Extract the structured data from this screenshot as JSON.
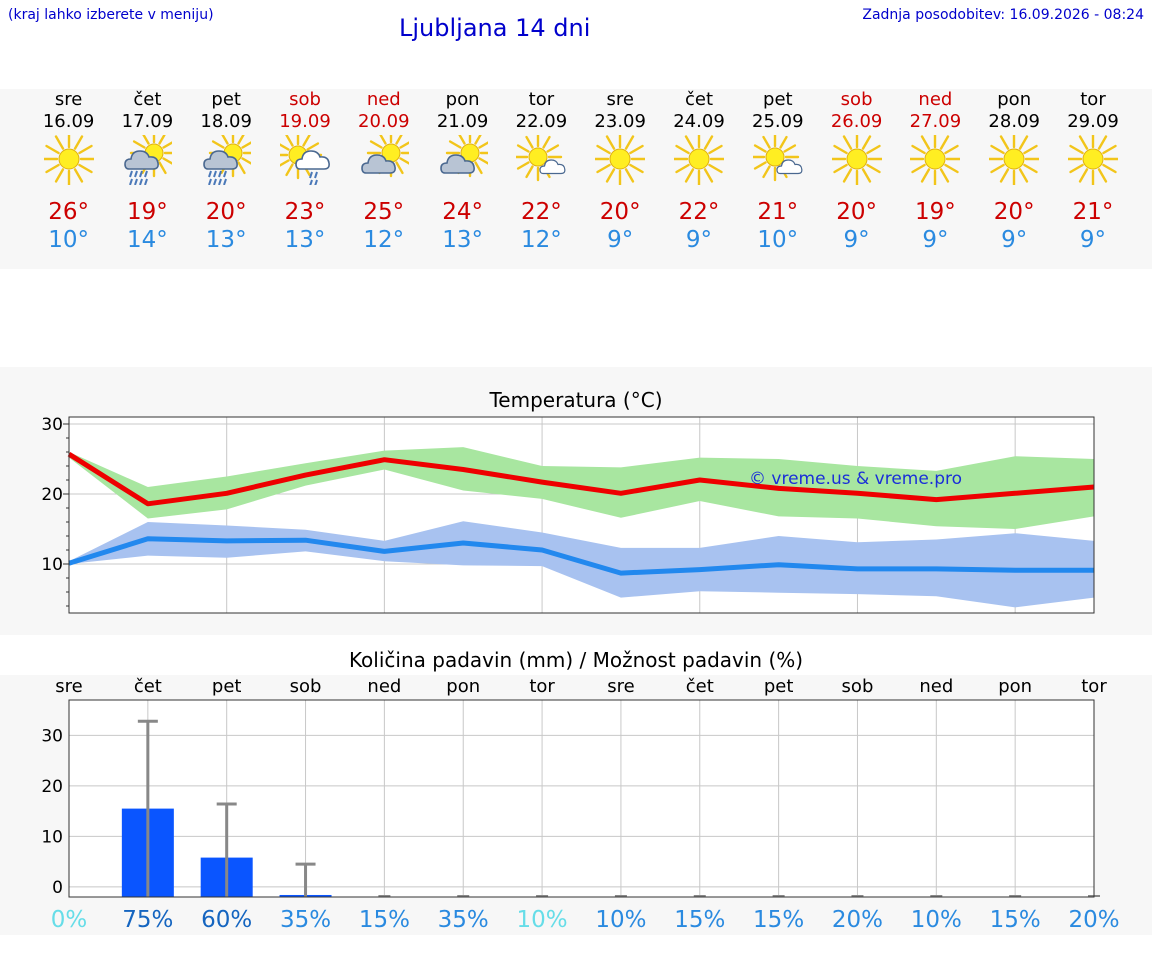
{
  "header": {
    "hint": "(kraj lahko izberete v meniju)",
    "title": "Ljubljana 14 dni",
    "updated": "Zadnja posodobitev: 16.09.2026 - 08:24"
  },
  "days": [
    {
      "day": "sre",
      "date": "16.09",
      "weekend": false,
      "icon": "sun-icon",
      "max": "26°",
      "min": "10°"
    },
    {
      "day": "čet",
      "date": "17.09",
      "weekend": false,
      "icon": "sun-cloud-rain-icon",
      "max": "19°",
      "min": "14°"
    },
    {
      "day": "pet",
      "date": "18.09",
      "weekend": false,
      "icon": "sun-cloud-rain-icon",
      "max": "20°",
      "min": "13°"
    },
    {
      "day": "sob",
      "date": "19.09",
      "weekend": true,
      "icon": "sun-cloud-light-rain-icon",
      "max": "23°",
      "min": "13°"
    },
    {
      "day": "ned",
      "date": "20.09",
      "weekend": true,
      "icon": "sun-cloud-icon",
      "max": "25°",
      "min": "12°"
    },
    {
      "day": "pon",
      "date": "21.09",
      "weekend": false,
      "icon": "sun-cloud-icon",
      "max": "24°",
      "min": "13°"
    },
    {
      "day": "tor",
      "date": "22.09",
      "weekend": false,
      "icon": "sun-small-cloud-icon",
      "max": "22°",
      "min": "12°"
    },
    {
      "day": "sre",
      "date": "23.09",
      "weekend": false,
      "icon": "sun-icon",
      "max": "20°",
      "min": "9°"
    },
    {
      "day": "čet",
      "date": "24.09",
      "weekend": false,
      "icon": "sun-icon",
      "max": "22°",
      "min": "9°"
    },
    {
      "day": "pet",
      "date": "25.09",
      "weekend": false,
      "icon": "sun-small-cloud-icon",
      "max": "21°",
      "min": "10°"
    },
    {
      "day": "sob",
      "date": "26.09",
      "weekend": true,
      "icon": "sun-icon",
      "max": "20°",
      "min": "9°"
    },
    {
      "day": "ned",
      "date": "27.09",
      "weekend": true,
      "icon": "sun-icon",
      "max": "19°",
      "min": "9°"
    },
    {
      "day": "pon",
      "date": "28.09",
      "weekend": false,
      "icon": "sun-icon",
      "max": "20°",
      "min": "9°"
    },
    {
      "day": "tor",
      "date": "29.09",
      "weekend": false,
      "icon": "sun-icon",
      "max": "21°",
      "min": "9°"
    }
  ],
  "colors": {
    "max_line": "#ee0000",
    "max_band": "#a8e6a0",
    "min_line": "#2288ee",
    "min_band": "#a8c2f0",
    "precip_bar": "#0a55ff",
    "error_bar": "#888888",
    "header_text": "#0000cc",
    "weekend_text": "#cc0000",
    "min_text": "#2a8ae0"
  },
  "chart_data": [
    {
      "type": "line",
      "title": "Temperatura (°C)",
      "watermark": "© vreme.us & vreme.pro",
      "x": [
        "16.09",
        "17.09",
        "18.09",
        "19.09",
        "20.09",
        "21.09",
        "22.09",
        "23.09",
        "24.09",
        "25.09",
        "26.09",
        "27.09",
        "28.09",
        "29.09"
      ],
      "yticks": [
        10,
        20,
        30
      ],
      "ylim": [
        3,
        31
      ],
      "grid": true,
      "series": [
        {
          "role": "max",
          "values": [
            25.7,
            18.6,
            20.1,
            22.7,
            24.9,
            23.5,
            21.7,
            20.1,
            22.0,
            20.8,
            20.1,
            19.2,
            20.1,
            21.0
          ],
          "band_low": [
            25.2,
            16.5,
            17.8,
            21.2,
            23.5,
            20.5,
            19.3,
            16.6,
            19.0,
            16.8,
            16.5,
            15.4,
            15.0,
            16.8
          ],
          "band_high": [
            26.0,
            21.0,
            22.5,
            24.4,
            26.2,
            26.7,
            24.0,
            23.8,
            25.2,
            25.0,
            24.0,
            23.3,
            25.4,
            25.0
          ]
        },
        {
          "role": "min",
          "values": [
            10.1,
            13.6,
            13.3,
            13.4,
            11.8,
            13.0,
            12.0,
            8.7,
            9.2,
            9.9,
            9.3,
            9.3,
            9.1,
            9.1
          ],
          "band_low": [
            10.0,
            11.2,
            10.9,
            11.8,
            10.4,
            9.8,
            9.7,
            5.2,
            6.1,
            5.9,
            5.7,
            5.4,
            3.8,
            5.2
          ],
          "band_high": [
            10.4,
            16.0,
            15.5,
            14.9,
            13.3,
            16.1,
            14.5,
            12.3,
            12.3,
            14.0,
            13.1,
            13.5,
            14.4,
            13.3
          ]
        }
      ]
    },
    {
      "type": "bar",
      "title": "Količina padavin (mm) / Možnost padavin (%)",
      "categories": [
        "sre",
        "čet",
        "pet",
        "sob",
        "ned",
        "pon",
        "tor",
        "sre",
        "čet",
        "pet",
        "sob",
        "ned",
        "pon",
        "tor"
      ],
      "values": [
        0,
        17.5,
        7.8,
        0.4,
        0,
        0,
        0,
        0,
        0,
        0,
        0,
        0,
        0,
        0
      ],
      "error_high": [
        0,
        34.8,
        18.4,
        6.5,
        0,
        0,
        0,
        0,
        0,
        0,
        0,
        0,
        0,
        0
      ],
      "probability": [
        "0%",
        "75%",
        "60%",
        "35%",
        "15%",
        "35%",
        "10%",
        "10%",
        "15%",
        "15%",
        "20%",
        "10%",
        "15%",
        "20%"
      ],
      "probability_colors": [
        "#66dde8",
        "#1565c0",
        "#1565c0",
        "#2a8ae0",
        "#2a8ae0",
        "#2a8ae0",
        "#66dde8",
        "#2a8ae0",
        "#2a8ae0",
        "#2a8ae0",
        "#2a8ae0",
        "#2a8ae0",
        "#2a8ae0",
        "#2a8ae0"
      ],
      "yticks": [
        0,
        10,
        20,
        30
      ],
      "ylim": [
        -2,
        37
      ],
      "grid": true
    }
  ]
}
